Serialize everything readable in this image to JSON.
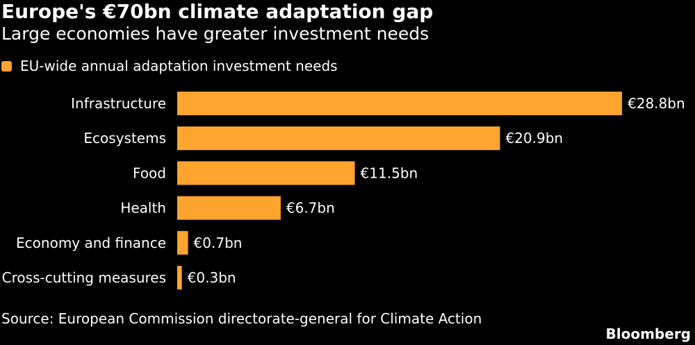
{
  "title": "Europe's €70bn climate adaptation gap",
  "subtitle": "Large economies have greater investment needs",
  "source": "Source: European Commission directorate-general for Climate Action",
  "brand": "Bloomberg",
  "colors": {
    "bar": "#FFA52F",
    "background": "#000000",
    "text": "#FFFFFF"
  },
  "chart_data": {
    "type": "bar",
    "orientation": "horizontal",
    "title": "Europe's €70bn climate adaptation gap",
    "subtitle": "Large economies have greater investment needs",
    "legend_position": "top-left",
    "grid": false,
    "xlim": [
      0,
      28.8
    ],
    "categories": [
      "Infrastructure",
      "Ecosystems",
      "Food",
      "Health",
      "Economy and finance",
      "Cross-cutting measures"
    ],
    "series": [
      {
        "name": "EU-wide annual adaptation investment needs",
        "values": [
          28.8,
          20.9,
          11.5,
          6.7,
          0.7,
          0.3
        ],
        "labels": [
          "€28.8bn",
          "€20.9bn",
          "€11.5bn",
          "€6.7bn",
          "€0.7bn",
          "€0.3bn"
        ]
      }
    ]
  }
}
